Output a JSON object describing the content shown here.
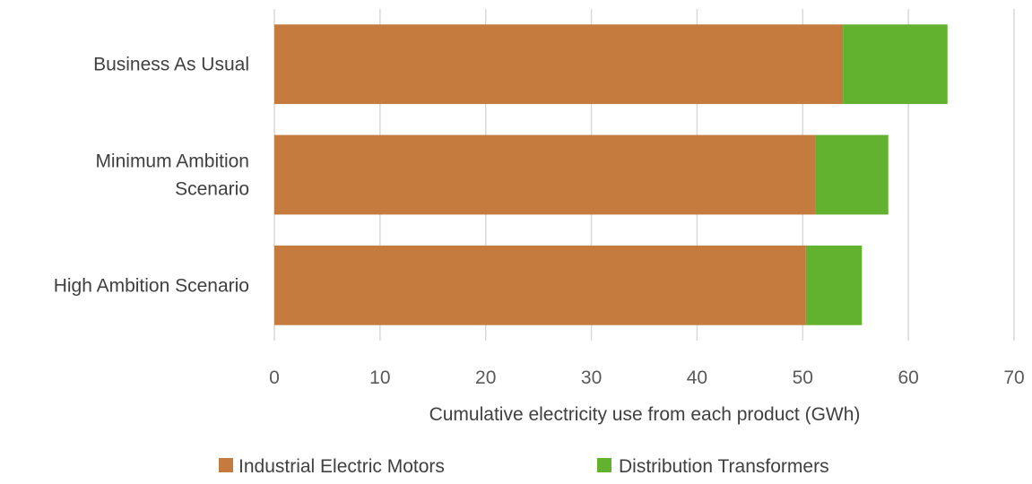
{
  "chart_data": {
    "type": "bar",
    "orientation": "horizontal",
    "stacked": true,
    "categories": [
      [
        "Business As Usual"
      ],
      [
        "Minimum Ambition",
        "Scenario"
      ],
      [
        "High Ambition Scenario"
      ]
    ],
    "series": [
      {
        "name": "Industrial Electric Motors",
        "color": "#c57b3e",
        "values": [
          53.8,
          51.2,
          50.3
        ]
      },
      {
        "name": "Distribution Transformers",
        "color": "#63b22f",
        "values": [
          9.9,
          6.9,
          5.3
        ]
      }
    ],
    "xlabel": "Cumulative electricity use from each product (GWh)",
    "xlim": [
      0,
      70
    ],
    "xticks": [
      0,
      10,
      20,
      30,
      40,
      50,
      60,
      70
    ],
    "grid": true,
    "legend_position": "bottom"
  }
}
